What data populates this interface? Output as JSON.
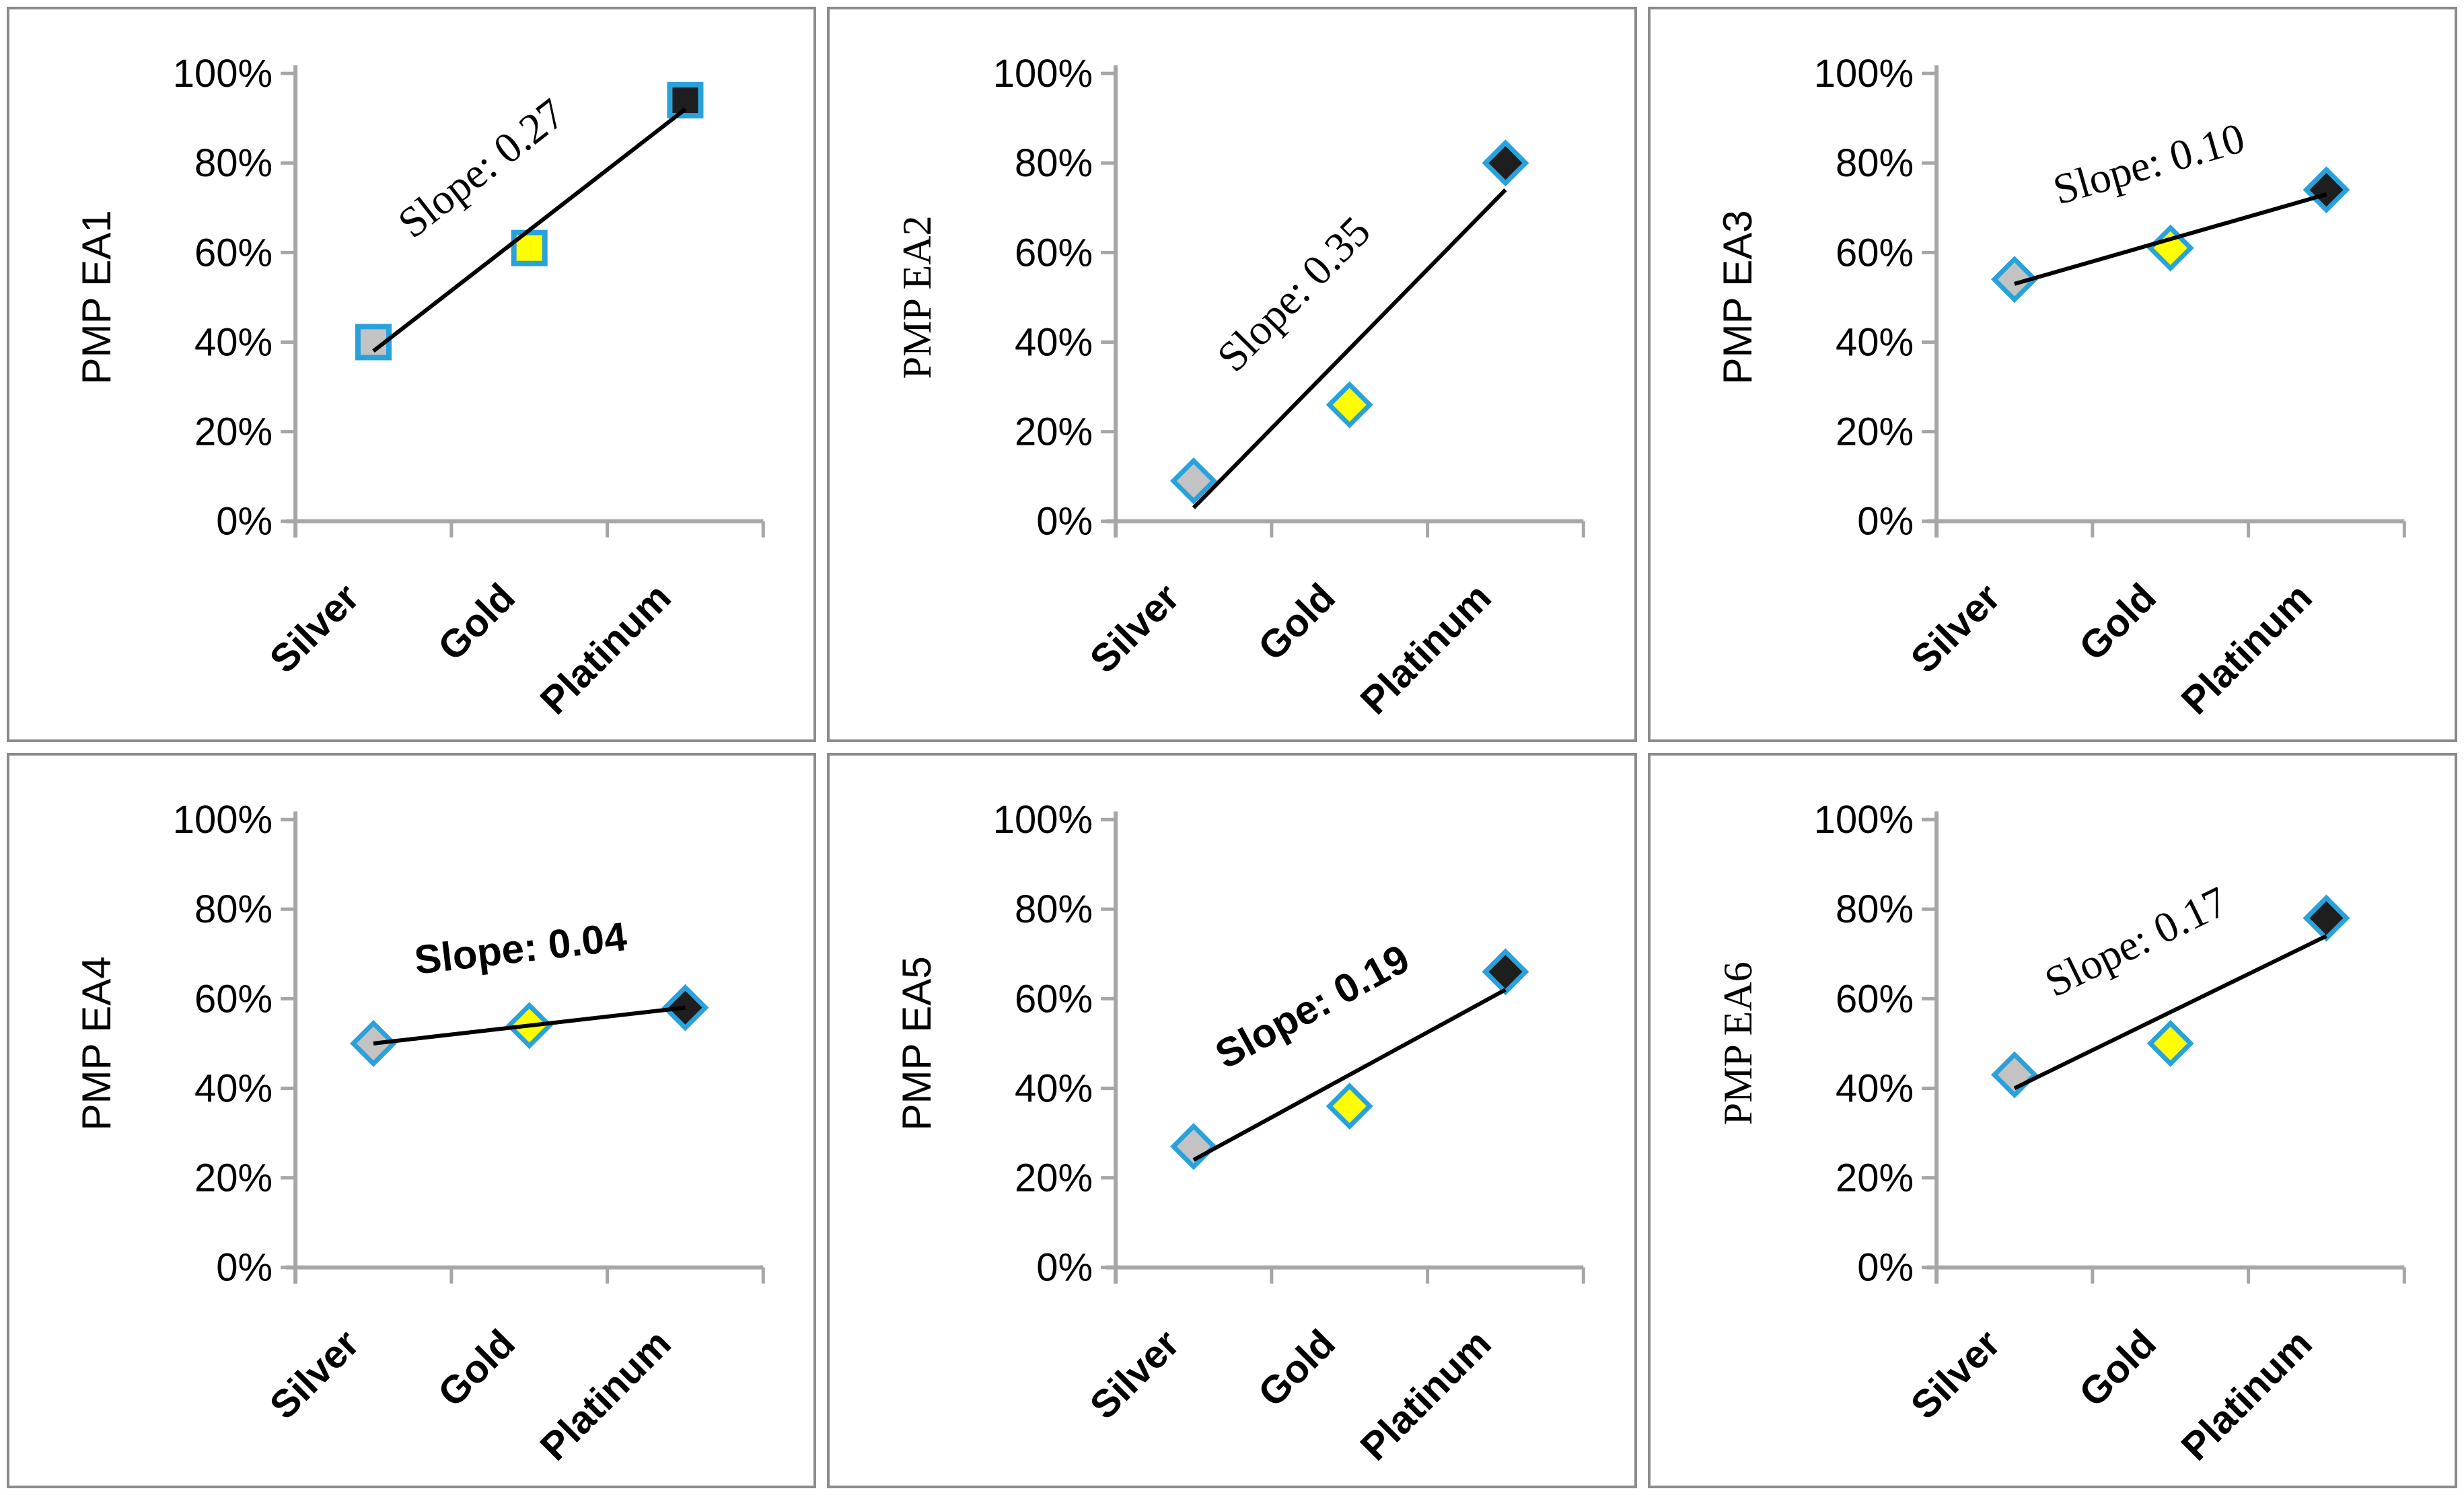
{
  "page": {
    "background": "#FFFFFF",
    "panel_border_color": "#8C8C8C"
  },
  "colors": {
    "axis": "#A6A6A6",
    "tick": "#A6A6A6",
    "text": "#000000",
    "trend_line": "#000000",
    "marker_border": "#29A2DC",
    "marker_fills": [
      "#C3C3C3",
      "#FFFF00",
      "#1E1E1E"
    ]
  },
  "chart_data": [
    {
      "type": "scatter",
      "ylabel": "PMP EA1",
      "categories": [
        "Silver",
        "Gold",
        "Platinum"
      ],
      "values": [
        40,
        61,
        94
      ],
      "marker": "square",
      "trend": {
        "label": "Slope: 0.27",
        "slope": 0.27,
        "line_start_pct": 38,
        "line_end_pct": 92
      },
      "yticks": [
        "0%",
        "20%",
        "40%",
        "60%",
        "80%",
        "100%"
      ],
      "ylim": [
        0,
        100
      ],
      "grid": false,
      "label_styles": {
        "ylabel": "sans",
        "slope": "serif"
      }
    },
    {
      "type": "scatter",
      "ylabel": "PMP EA2",
      "categories": [
        "Silver",
        "Gold",
        "Platinum"
      ],
      "values": [
        9,
        26,
        80
      ],
      "marker": "diamond",
      "trend": {
        "label": "Slope: 0.35",
        "slope": 0.35,
        "line_start_pct": 3,
        "line_end_pct": 74
      },
      "yticks": [
        "0%",
        "20%",
        "40%",
        "60%",
        "80%",
        "100%"
      ],
      "ylim": [
        0,
        100
      ],
      "grid": false,
      "label_styles": {
        "ylabel": "serif",
        "slope": "serif"
      }
    },
    {
      "type": "scatter",
      "ylabel": "PMP EA3",
      "categories": [
        "Silver",
        "Gold",
        "Platinum"
      ],
      "values": [
        54,
        61,
        74
      ],
      "marker": "diamond",
      "trend": {
        "label": "Slope: 0.10",
        "slope": 0.1,
        "line_start_pct": 53,
        "line_end_pct": 73
      },
      "yticks": [
        "0%",
        "20%",
        "40%",
        "60%",
        "80%",
        "100%"
      ],
      "ylim": [
        0,
        100
      ],
      "grid": false,
      "label_styles": {
        "ylabel": "sans",
        "slope": "serif"
      }
    },
    {
      "type": "scatter",
      "ylabel": "PMP EA4",
      "categories": [
        "Silver",
        "Gold",
        "Platinum"
      ],
      "values": [
        50,
        54,
        58
      ],
      "marker": "diamond",
      "trend": {
        "label": "Slope: 0.04",
        "slope": 0.04,
        "line_start_pct": 50,
        "line_end_pct": 58
      },
      "yticks": [
        "0%",
        "20%",
        "40%",
        "60%",
        "80%",
        "100%"
      ],
      "ylim": [
        0,
        100
      ],
      "grid": false,
      "label_styles": {
        "ylabel": "sans",
        "slope": "sans"
      }
    },
    {
      "type": "scatter",
      "ylabel": "PMP EA5",
      "categories": [
        "Silver",
        "Gold",
        "Platinum"
      ],
      "values": [
        27,
        36,
        66
      ],
      "marker": "diamond",
      "trend": {
        "label": "Slope: 0.19",
        "slope": 0.19,
        "line_start_pct": 24,
        "line_end_pct": 62
      },
      "yticks": [
        "0%",
        "20%",
        "40%",
        "60%",
        "80%",
        "100%"
      ],
      "ylim": [
        0,
        100
      ],
      "grid": false,
      "label_styles": {
        "ylabel": "sans",
        "slope": "sans"
      }
    },
    {
      "type": "scatter",
      "ylabel": "PMP EA6",
      "categories": [
        "Silver",
        "Gold",
        "Platinum"
      ],
      "values": [
        43,
        50,
        78
      ],
      "marker": "diamond",
      "trend": {
        "label": "Slope:  0.17",
        "slope": 0.17,
        "line_start_pct": 40,
        "line_end_pct": 74
      },
      "yticks": [
        "0%",
        "20%",
        "40%",
        "60%",
        "80%",
        "100%"
      ],
      "ylim": [
        0,
        100
      ],
      "grid": false,
      "label_styles": {
        "ylabel": "serif",
        "slope": "serif"
      }
    }
  ]
}
